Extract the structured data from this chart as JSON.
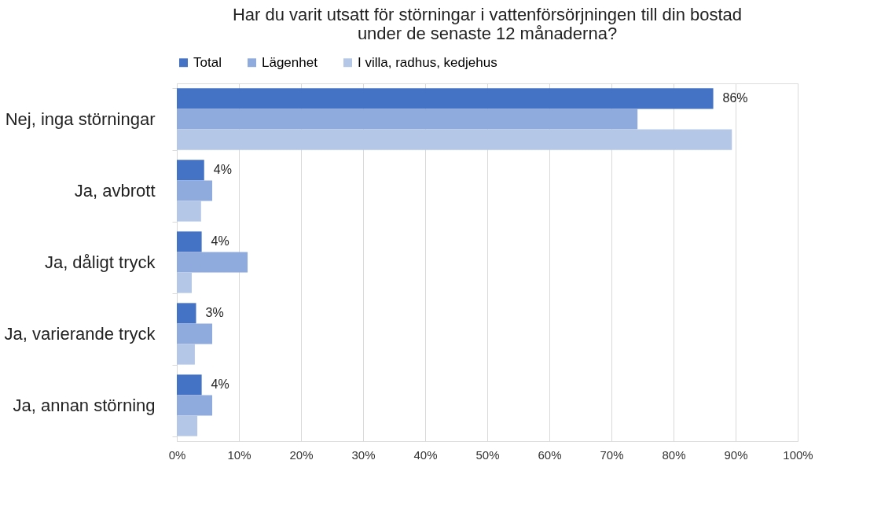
{
  "chart_data": {
    "type": "bar",
    "orientation": "horizontal",
    "title": [
      "Har du varit utsatt för störningar i vattenförsörjningen till din bostad",
      "under de senaste 12 månaderna?"
    ],
    "categories": [
      "Nej, inga störningar",
      "Ja, avbrott",
      "Ja, dåligt tryck",
      "Ja, varierande tryck",
      "Ja, annan störning"
    ],
    "series": [
      {
        "name": "Total",
        "color": "#4472c4",
        "values": [
          86.4,
          4.4,
          4.0,
          3.1,
          4.0
        ],
        "value_labels": [
          "86%",
          "4%",
          "4%",
          "3%",
          "4%"
        ]
      },
      {
        "name": "Lägenhet",
        "color": "#8faadc",
        "values": [
          74.2,
          5.7,
          11.4,
          5.7,
          5.7
        ]
      },
      {
        "name": "I villa, radhus, kedjehus",
        "color": "#b4c7e7",
        "values": [
          89.4,
          3.9,
          2.4,
          2.9,
          3.3
        ]
      }
    ],
    "xlim": [
      0,
      100
    ],
    "xticks": [
      {
        "value": 0,
        "label": "0%"
      },
      {
        "value": 10,
        "label": "10%"
      },
      {
        "value": 20,
        "label": "20%"
      },
      {
        "value": 30,
        "label": "30%"
      },
      {
        "value": 40,
        "label": "40%"
      },
      {
        "value": 50,
        "label": "50%"
      },
      {
        "value": 60,
        "label": "60%"
      },
      {
        "value": 70,
        "label": "70%"
      },
      {
        "value": 80,
        "label": "80%"
      },
      {
        "value": 90,
        "label": "90%"
      },
      {
        "value": 100,
        "label": "100%"
      }
    ],
    "grid": "x",
    "legend": "top"
  }
}
